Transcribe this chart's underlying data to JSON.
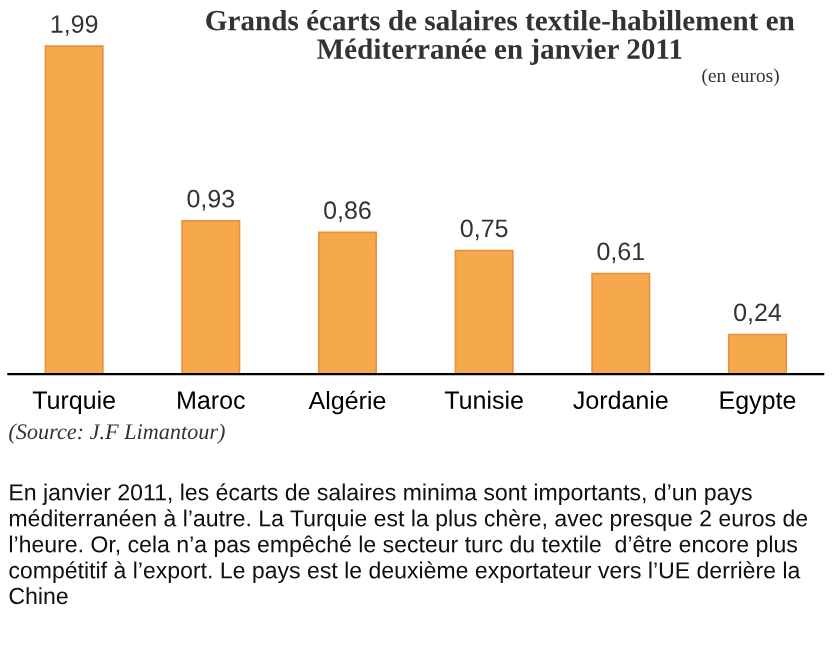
{
  "chart_data": {
    "type": "bar",
    "title": "Grands écarts de salaires textile-habillement en\nMéditerranée en janvier 2011",
    "subtitle": "(en euros)",
    "categories": [
      "Turquie",
      "Maroc",
      "Algérie",
      "Tunisie",
      "Jordanie",
      "Egypte"
    ],
    "values": [
      1.99,
      0.93,
      0.86,
      0.75,
      0.61,
      0.24
    ],
    "color": "#f6a94c",
    "value_labels": [
      "1,99",
      "0,93",
      "0,86",
      "0,75",
      "0,61",
      "0,24"
    ],
    "annotations": [
      "(Source: J.F Limantour)",
      "En janvier 2011, les écarts de salaires minima sont importants, d’un pays méditerranéen à l’autre. La Turquie est la plus chère, avec presque 2 euros de l’heure. Or, cela n’a pas empêché le secteur turc du textile  d’être encore plus compétitif à l’export. Le pays est le deuxième exportateur vers l’UE derrière la Chine"
    ]
  }
}
